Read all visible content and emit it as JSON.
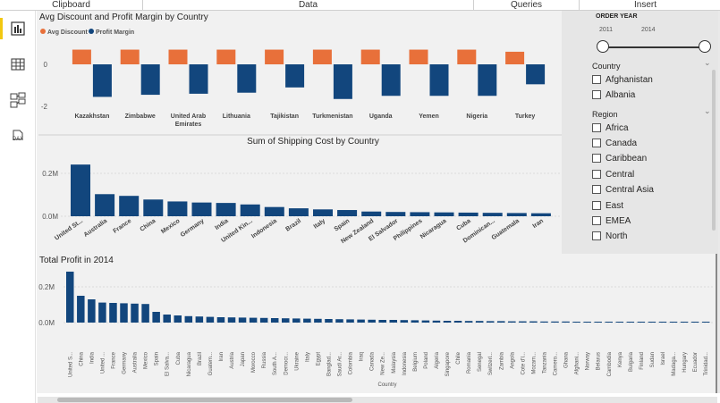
{
  "ribbon": {
    "groups": [
      "Clipboard",
      "Data",
      "Queries",
      "Insert"
    ]
  },
  "rail": {
    "icons": [
      "report-view-icon",
      "data-view-icon",
      "model-view-icon",
      "dax-query-icon"
    ],
    "dax_label": "DAX"
  },
  "visuals": {
    "discount_margin": {
      "title": "Avg Discount and Profit Margin by Country",
      "legend": [
        "Avg Discount",
        "Profit Margin"
      ],
      "colors": {
        "discount": "#e8703a",
        "margin": "#12467d"
      },
      "y_ticks": [
        "0",
        "-2"
      ]
    },
    "shipping": {
      "title": "Sum of Shipping Cost by Country",
      "y_ticks": [
        "0.2M",
        "0.0M"
      ],
      "color": "#12467d"
    },
    "profit2014": {
      "title": "Total Profit in 2014",
      "y_ticks": [
        "0.2M",
        "0.0M"
      ],
      "xlabel": "Country",
      "color": "#12467d"
    }
  },
  "chart_data": [
    {
      "type": "bar",
      "title": "Avg Discount and Profit Margin by Country",
      "categories": [
        "Kazakhstan",
        "Zimbabwe",
        "United Arab Emirates",
        "Lithuania",
        "Tajikistan",
        "Turkmenistan",
        "Uganda",
        "Yemen",
        "Nigeria",
        "Turkey"
      ],
      "series": [
        {
          "name": "Avg Discount",
          "values": [
            0.7,
            0.7,
            0.7,
            0.7,
            0.7,
            0.7,
            0.7,
            0.7,
            0.7,
            0.6
          ]
        },
        {
          "name": "Profit Margin",
          "values": [
            -1.55,
            -1.45,
            -1.4,
            -1.35,
            -1.1,
            -1.65,
            -1.5,
            -1.5,
            -1.5,
            -0.95
          ]
        }
      ],
      "ylim": [
        -2.3,
        0.8
      ],
      "legend": "top-left"
    },
    {
      "type": "bar",
      "title": "Sum of Shipping Cost by Country",
      "categories": [
        "United St...",
        "Australia",
        "France",
        "China",
        "Mexico",
        "Germany",
        "India",
        "United Kin...",
        "Indonesia",
        "Brazil",
        "Italy",
        "Spain",
        "New Zealand",
        "El Salvador",
        "Philippines",
        "Nicaragua",
        "Cuba",
        "Dominican...",
        "Guatemala",
        "Iran"
      ],
      "values": [
        0.241,
        0.103,
        0.095,
        0.078,
        0.069,
        0.064,
        0.062,
        0.055,
        0.043,
        0.037,
        0.032,
        0.029,
        0.022,
        0.02,
        0.019,
        0.018,
        0.017,
        0.016,
        0.015,
        0.014
      ],
      "ylim": [
        0,
        0.28
      ],
      "unit": "M"
    },
    {
      "type": "bar",
      "title": "Total Profit in 2014",
      "xlabel": "Country",
      "categories": [
        "United S...",
        "China",
        "India",
        "United ...",
        "France",
        "Germany",
        "Australia",
        "Mexico",
        "Spain",
        "El Salva...",
        "Cuba",
        "Nicaragua",
        "Brazil",
        "Guatem...",
        "Iran",
        "Austria",
        "Japan",
        "Morocco",
        "Russia",
        "South A...",
        "Democr...",
        "Ukraine",
        "Italy",
        "Egypt",
        "Banglad...",
        "Saudi Ar...",
        "Colombia",
        "Iraq",
        "Canada",
        "New Ze...",
        "Malaysia",
        "Indonesia",
        "Belgium",
        "Poland",
        "Algeria",
        "Singapore",
        "Chile",
        "Romania",
        "Senegal",
        "Switzerl...",
        "Zambia",
        "Angola",
        "Cote d'I...",
        "Mozam...",
        "Tanzania",
        "Camero...",
        "Ghana",
        "Afghani...",
        "Norway",
        "Belarus",
        "Cambodia",
        "Kenya",
        "Bulgaria",
        "Finland",
        "Sudan",
        "Israel",
        "Madaga...",
        "Hungary",
        "Ecuador",
        "Trinidad..."
      ],
      "values": [
        0.285,
        0.15,
        0.13,
        0.112,
        0.11,
        0.108,
        0.106,
        0.104,
        0.06,
        0.045,
        0.04,
        0.036,
        0.034,
        0.032,
        0.03,
        0.029,
        0.028,
        0.027,
        0.026,
        0.025,
        0.024,
        0.023,
        0.022,
        0.021,
        0.02,
        0.019,
        0.018,
        0.017,
        0.016,
        0.015,
        0.015,
        0.014,
        0.013,
        0.012,
        0.011,
        0.01,
        0.01,
        0.009,
        0.009,
        0.008,
        0.008,
        0.007,
        0.007,
        0.007,
        0.006,
        0.006,
        0.006,
        0.005,
        0.005,
        0.005,
        0.005,
        0.004,
        0.004,
        0.004,
        0.004,
        0.003,
        0.003,
        0.003,
        0.003,
        0.003
      ],
      "ylim": [
        0,
        0.32
      ],
      "unit": "M"
    }
  ],
  "slicers": {
    "order_year": {
      "title": "ORDER YEAR",
      "min": "2011",
      "max": "2014",
      "selected_range": [
        2011,
        2014
      ]
    },
    "country": {
      "title": "Country",
      "items": [
        "Afghanistan",
        "Albania"
      ]
    },
    "region": {
      "title": "Region",
      "items": [
        "Africa",
        "Canada",
        "Caribbean",
        "Central",
        "Central Asia",
        "East",
        "EMEA",
        "North"
      ]
    }
  }
}
